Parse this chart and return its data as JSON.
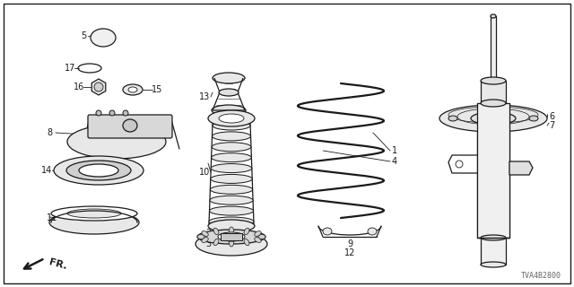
{
  "background_color": "#ffffff",
  "border_color": "#000000",
  "diagram_id": "TVA4B2800",
  "draw_color": "#1a1a1a",
  "lw": 0.9,
  "figsize": [
    6.4,
    3.2
  ],
  "dpi": 100
}
